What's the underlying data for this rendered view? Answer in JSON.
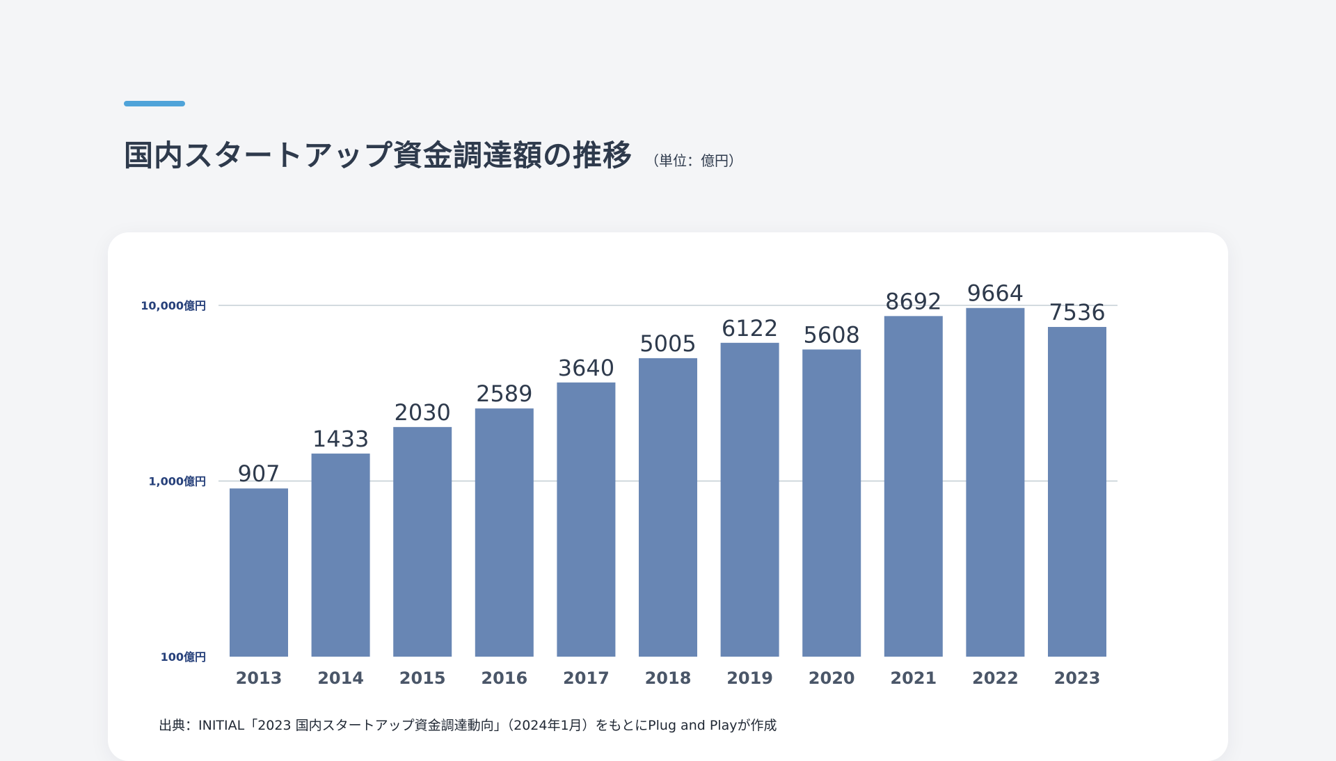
{
  "header": {
    "title": "国内スタートアップ資金調達額の推移",
    "unit_note": "（単位：億円）"
  },
  "footer": {
    "source": "出典：INITIAL「2023 国内スタートアップ資金調達動向」（2024年1月）をもとにPlug and Playが作成"
  },
  "colors": {
    "accent": "#4fa3d9",
    "bar": "#6886b4",
    "axis_label": "#26407a",
    "value_label": "#2e3a4c",
    "gridline": "#b9c4cc"
  },
  "chart_data": {
    "type": "bar",
    "categories": [
      "2013",
      "2014",
      "2015",
      "2016",
      "2017",
      "2018",
      "2019",
      "2020",
      "2021",
      "2022",
      "2023"
    ],
    "values": [
      907,
      1433,
      2030,
      2589,
      3640,
      5005,
      6122,
      5608,
      8692,
      9664,
      7536
    ],
    "y_scale": "log",
    "ylim": [
      100,
      10000
    ],
    "y_ticks": [
      100,
      1000,
      10000
    ],
    "y_tick_labels": [
      "100億円",
      "1,000億円",
      "10,000億円"
    ],
    "gridlines": [
      1000,
      10000
    ],
    "data_labels": true
  }
}
